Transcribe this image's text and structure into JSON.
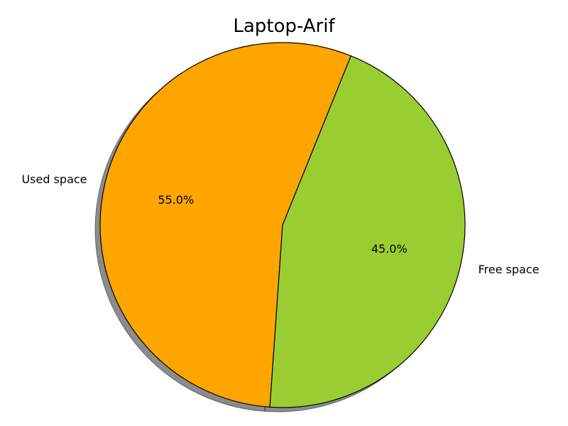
{
  "chart_data": {
    "type": "pie",
    "title": "Laptop-Arif",
    "categories": [
      "Used space",
      "Free space"
    ],
    "values": [
      55.0,
      45.0
    ],
    "percent_labels": [
      "55.0%",
      "45.0%"
    ],
    "colors": [
      "#ffa500",
      "#9acd32"
    ],
    "shadow": true,
    "edge_color": "#000000"
  }
}
